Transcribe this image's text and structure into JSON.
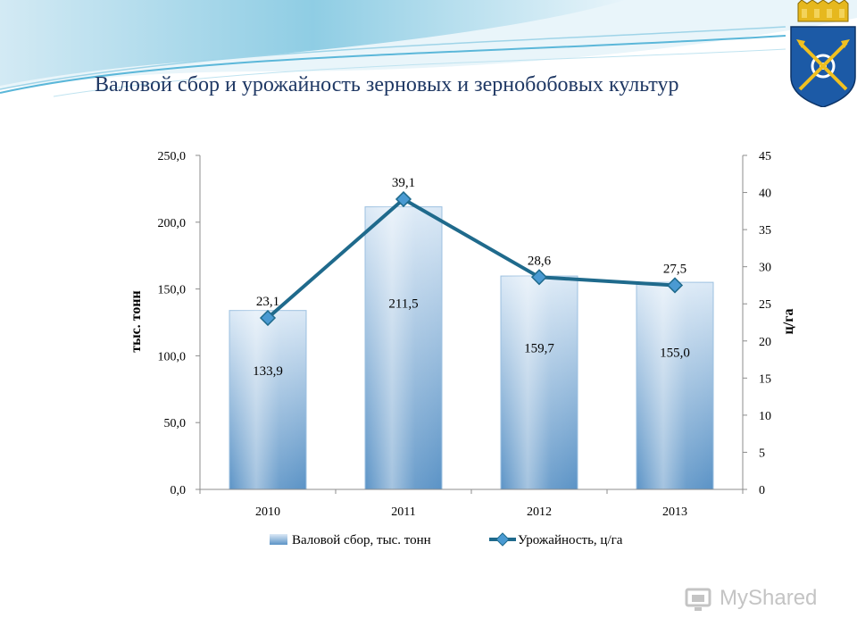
{
  "slide": {
    "title": "Валовой сбор и урожайность зерновых и зернобобовых культур",
    "watermark": "MyShared"
  },
  "colors": {
    "title": "#1f3864",
    "bar_light": "#dbe9f6",
    "bar_dark": "#5b93c6",
    "line": "#1f6a8c",
    "marker": "#4a9ad2"
  },
  "icons": {
    "emblem": "city-coat-of-arms-icon",
    "watermark": "myshared-logo-icon"
  },
  "chart_data": {
    "type": "bar",
    "title": "",
    "categories": [
      "2010",
      "2011",
      "2012",
      "2013"
    ],
    "series": [
      {
        "name": "Валовой сбор, тыс. тонн",
        "type": "bar",
        "axis": "left",
        "values": [
          133.9,
          211.5,
          159.7,
          155.0
        ],
        "labels": [
          "133,9",
          "211,5",
          "159,7",
          "155,0"
        ]
      },
      {
        "name": "Урожайность, ц/га",
        "type": "line",
        "axis": "right",
        "values": [
          23.1,
          39.1,
          28.6,
          27.5
        ],
        "labels": [
          "23,1",
          "39,1",
          "28,6",
          "27,5"
        ]
      }
    ],
    "ylabel": "тыс. тонн",
    "y2label": "ц/га",
    "ylim": [
      0,
      250
    ],
    "y2lim": [
      0,
      45
    ],
    "yticks": [
      "0,0",
      "50,0",
      "100,0",
      "150,0",
      "200,0",
      "250,0"
    ],
    "y2ticks": [
      "0",
      "5",
      "10",
      "15",
      "20",
      "25",
      "30",
      "35",
      "40",
      "45"
    ],
    "legend_position": "bottom",
    "grid": false
  }
}
